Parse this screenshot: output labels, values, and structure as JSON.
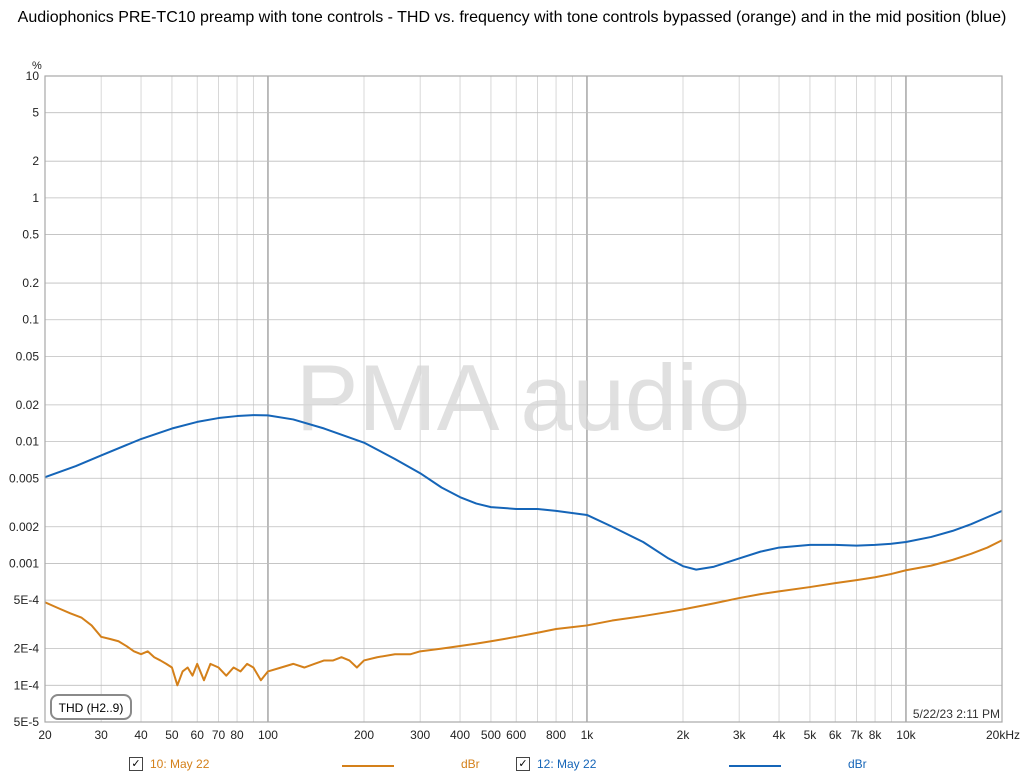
{
  "title": "Audiophonics PRE-TC10 preamp with tone controls - THD vs. frequency with tone controls bypassed (orange) and in the mid position (blue)",
  "watermark": "PMA audio",
  "timestamp": "5/22/23 2:11 PM",
  "legend_box": "THD (H2..9)",
  "colors": {
    "series1": "#d4801a",
    "series2": "#1565b8"
  },
  "legend": [
    {
      "check": "✓",
      "name": "10: May 22",
      "unit": "dBr",
      "color": "#d4801a"
    },
    {
      "check": "✓",
      "name": "12: May 22",
      "unit": "dBr",
      "color": "#1565b8"
    }
  ],
  "chart_data": {
    "type": "line",
    "xlabel": "",
    "ylabel": "%",
    "xscale": "log",
    "yscale": "log",
    "xlim": [
      20,
      20000
    ],
    "ylim": [
      5e-05,
      10
    ],
    "grid": true,
    "x_ticks": [
      {
        "v": 20,
        "label": "20"
      },
      {
        "v": 30,
        "label": "30"
      },
      {
        "v": 40,
        "label": "40"
      },
      {
        "v": 50,
        "label": "50"
      },
      {
        "v": 60,
        "label": "60"
      },
      {
        "v": 70,
        "label": "70"
      },
      {
        "v": 80,
        "label": "80"
      },
      {
        "v": 100,
        "label": "100"
      },
      {
        "v": 200,
        "label": "200"
      },
      {
        "v": 300,
        "label": "300"
      },
      {
        "v": 400,
        "label": "400"
      },
      {
        "v": 500,
        "label": "500"
      },
      {
        "v": 600,
        "label": "600"
      },
      {
        "v": 800,
        "label": "800"
      },
      {
        "v": 1000,
        "label": "1k"
      },
      {
        "v": 2000,
        "label": "2k"
      },
      {
        "v": 3000,
        "label": "3k"
      },
      {
        "v": 4000,
        "label": "4k"
      },
      {
        "v": 5000,
        "label": "5k"
      },
      {
        "v": 6000,
        "label": "6k"
      },
      {
        "v": 7000,
        "label": "7k"
      },
      {
        "v": 8000,
        "label": "8k"
      },
      {
        "v": 10000,
        "label": "10k"
      },
      {
        "v": 20000,
        "label": "20kHz"
      }
    ],
    "y_ticks": [
      {
        "v": 10,
        "label": "10"
      },
      {
        "v": 5,
        "label": "5"
      },
      {
        "v": 2,
        "label": "2"
      },
      {
        "v": 1,
        "label": "1"
      },
      {
        "v": 0.5,
        "label": "0.5"
      },
      {
        "v": 0.2,
        "label": "0.2"
      },
      {
        "v": 0.1,
        "label": "0.1"
      },
      {
        "v": 0.05,
        "label": "0.05"
      },
      {
        "v": 0.02,
        "label": "0.02"
      },
      {
        "v": 0.01,
        "label": "0.01"
      },
      {
        "v": 0.005,
        "label": "0.005"
      },
      {
        "v": 0.002,
        "label": "0.002"
      },
      {
        "v": 0.001,
        "label": "0.001"
      },
      {
        "v": 0.0005,
        "label": "5E-4"
      },
      {
        "v": 0.0002,
        "label": "2E-4"
      },
      {
        "v": 0.0001,
        "label": "1E-4"
      },
      {
        "v": 5e-05,
        "label": "5E-5"
      }
    ],
    "series": [
      {
        "name": "10: May 22",
        "color": "#d4801a",
        "x": [
          20,
          22,
          24,
          26,
          28,
          30,
          32,
          34,
          36,
          38,
          40,
          42,
          44,
          46,
          48,
          50,
          52,
          54,
          56,
          58,
          60,
          63,
          66,
          70,
          74,
          78,
          82,
          86,
          90,
          95,
          100,
          110,
          120,
          130,
          140,
          150,
          160,
          170,
          180,
          190,
          200,
          220,
          250,
          280,
          300,
          350,
          400,
          450,
          500,
          550,
          600,
          700,
          800,
          900,
          1000,
          1200,
          1500,
          1800,
          2000,
          2500,
          3000,
          3500,
          4000,
          5000,
          6000,
          7000,
          8000,
          9000,
          10000,
          12000,
          14000,
          16000,
          18000,
          20000
        ],
        "y": [
          0.00048,
          0.00043,
          0.00039,
          0.00036,
          0.00031,
          0.00025,
          0.00024,
          0.00023,
          0.00021,
          0.00019,
          0.00018,
          0.00019,
          0.00017,
          0.00016,
          0.00015,
          0.00014,
          0.0001,
          0.00013,
          0.00014,
          0.00012,
          0.00015,
          0.00011,
          0.00015,
          0.00014,
          0.00012,
          0.00014,
          0.00013,
          0.00015,
          0.00014,
          0.00011,
          0.00013,
          0.00014,
          0.00015,
          0.00014,
          0.00015,
          0.00016,
          0.00016,
          0.00017,
          0.00016,
          0.00014,
          0.00016,
          0.00017,
          0.00018,
          0.00018,
          0.00019,
          0.0002,
          0.00021,
          0.00022,
          0.00023,
          0.00024,
          0.00025,
          0.00027,
          0.00029,
          0.0003,
          0.00031,
          0.00034,
          0.00037,
          0.0004,
          0.00042,
          0.00047,
          0.00052,
          0.00056,
          0.00059,
          0.00064,
          0.00069,
          0.00073,
          0.00077,
          0.00082,
          0.00088,
          0.00096,
          0.00107,
          0.0012,
          0.00135,
          0.00155
        ]
      },
      {
        "name": "12: May 22",
        "color": "#1565b8",
        "x": [
          20,
          25,
          30,
          40,
          50,
          60,
          70,
          80,
          90,
          100,
          120,
          150,
          200,
          250,
          300,
          350,
          400,
          450,
          500,
          600,
          700,
          800,
          1000,
          1200,
          1500,
          1800,
          2000,
          2200,
          2500,
          3000,
          3500,
          4000,
          5000,
          6000,
          7000,
          8000,
          9000,
          10000,
          12000,
          14000,
          16000,
          18000,
          20000
        ],
        "y": [
          0.0051,
          0.0063,
          0.0077,
          0.0105,
          0.0128,
          0.0145,
          0.0156,
          0.0162,
          0.0165,
          0.0164,
          0.0152,
          0.0128,
          0.0098,
          0.0072,
          0.0055,
          0.0042,
          0.0035,
          0.0031,
          0.0029,
          0.0028,
          0.0028,
          0.0027,
          0.0025,
          0.002,
          0.0015,
          0.0011,
          0.00095,
          0.00089,
          0.00094,
          0.0011,
          0.00125,
          0.00135,
          0.00142,
          0.00142,
          0.0014,
          0.00142,
          0.00145,
          0.0015,
          0.00165,
          0.00185,
          0.0021,
          0.0024,
          0.0027
        ]
      }
    ]
  }
}
